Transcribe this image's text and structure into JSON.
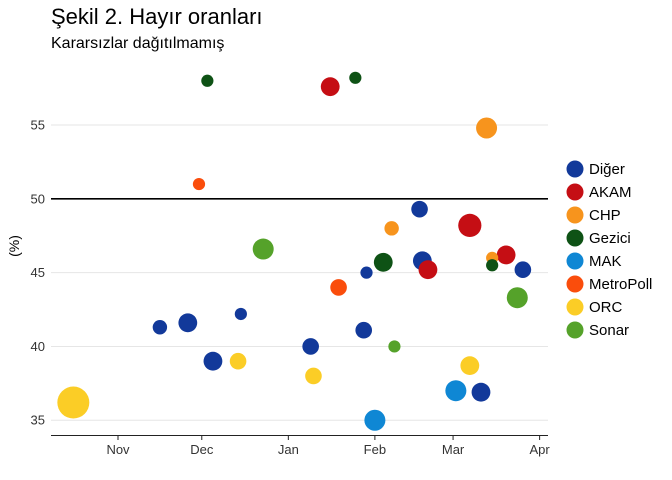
{
  "chart_data": {
    "type": "scatter",
    "title": "Şekil 2. Hayır oranları",
    "subtitle": "Kararsızlar dağıtılmamış",
    "xlabel": "",
    "ylabel": "(%)",
    "x_tick_labels": [
      "Nov",
      "Dec",
      "Jan",
      "Feb",
      "Mar",
      "Apr"
    ],
    "x_ticks": [
      "2016-11-01",
      "2016-12-01",
      "2017-01-01",
      "2017-02-01",
      "2017-03-01",
      "2017-04-01"
    ],
    "xlim": [
      "2016-10-08",
      "2017-04-04"
    ],
    "y_ticks": [
      35,
      40,
      45,
      50,
      55
    ],
    "ylim": [
      34,
      59
    ],
    "grid": true,
    "reference_line": 50,
    "legend_position": "right",
    "series": [
      {
        "name": "Diğer",
        "color": "#12399a",
        "points": [
          {
            "x": "2016-11-16",
            "y": 41.3,
            "size": 1
          },
          {
            "x": "2016-11-26",
            "y": 41.6,
            "size": 2
          },
          {
            "x": "2016-12-05",
            "y": 39.0,
            "size": 2
          },
          {
            "x": "2016-12-15",
            "y": 42.2,
            "size": 0.5
          },
          {
            "x": "2017-01-09",
            "y": 40.0,
            "size": 1.5
          },
          {
            "x": "2017-01-28",
            "y": 41.1,
            "size": 1.5
          },
          {
            "x": "2017-01-29",
            "y": 45.0,
            "size": 0.5
          },
          {
            "x": "2017-02-17",
            "y": 49.3,
            "size": 1.5
          },
          {
            "x": "2017-02-18",
            "y": 45.8,
            "size": 2
          },
          {
            "x": "2017-03-11",
            "y": 36.9,
            "size": 2
          },
          {
            "x": "2017-03-26",
            "y": 45.2,
            "size": 1.5
          }
        ]
      },
      {
        "name": "AKAM",
        "color": "#c50e14",
        "points": [
          {
            "x": "2017-01-16",
            "y": 57.6,
            "size": 2
          },
          {
            "x": "2017-02-20",
            "y": 45.2,
            "size": 2
          },
          {
            "x": "2017-03-07",
            "y": 48.2,
            "size": 3
          },
          {
            "x": "2017-03-20",
            "y": 46.2,
            "size": 2
          }
        ]
      },
      {
        "name": "CHP",
        "color": "#f7941d",
        "points": [
          {
            "x": "2017-02-07",
            "y": 48.0,
            "size": 1
          },
          {
            "x": "2017-03-13",
            "y": 54.8,
            "size": 2.5
          },
          {
            "x": "2017-03-15",
            "y": 46.0,
            "size": 0.5
          }
        ]
      },
      {
        "name": "Gezici",
        "color": "#0e5215",
        "points": [
          {
            "x": "2016-12-03",
            "y": 58.0,
            "size": 0.5
          },
          {
            "x": "2017-01-25",
            "y": 58.2,
            "size": 0.5
          },
          {
            "x": "2017-02-04",
            "y": 45.7,
            "size": 2
          },
          {
            "x": "2017-03-15",
            "y": 45.5,
            "size": 0.5
          }
        ]
      },
      {
        "name": "MAK",
        "color": "#0f87d4",
        "points": [
          {
            "x": "2017-02-01",
            "y": 35.0,
            "size": 2.5
          },
          {
            "x": "2017-03-02",
            "y": 37.0,
            "size": 2.5
          }
        ]
      },
      {
        "name": "MetroPoll",
        "color": "#fa4d0c",
        "points": [
          {
            "x": "2016-11-30",
            "y": 51.0,
            "size": 0.5
          },
          {
            "x": "2017-01-19",
            "y": 44.0,
            "size": 1.5
          }
        ]
      },
      {
        "name": "ORC",
        "color": "#fbcd26",
        "points": [
          {
            "x": "2016-10-16",
            "y": 36.2,
            "size": 5
          },
          {
            "x": "2016-12-14",
            "y": 39.0,
            "size": 1.5
          },
          {
            "x": "2017-01-10",
            "y": 38.0,
            "size": 1.5
          },
          {
            "x": "2017-03-07",
            "y": 38.7,
            "size": 2
          }
        ]
      },
      {
        "name": "Sonar",
        "color": "#55a22a",
        "points": [
          {
            "x": "2016-12-23",
            "y": 46.6,
            "size": 2.5
          },
          {
            "x": "2017-02-08",
            "y": 40.0,
            "size": 0.5
          },
          {
            "x": "2017-03-24",
            "y": 43.3,
            "size": 2.5
          }
        ]
      }
    ]
  }
}
